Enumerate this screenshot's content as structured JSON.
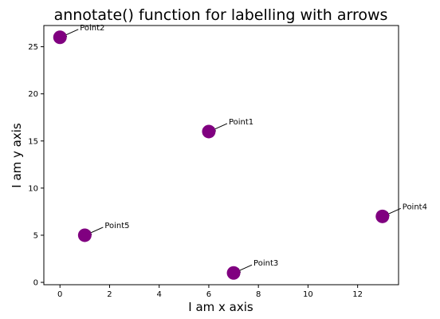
{
  "chart_data": {
    "type": "scatter",
    "title": "annotate() function for labelling with arrows",
    "xlabel": "I am x axis",
    "ylabel": "I am y axis",
    "xlim": [
      -0.65,
      13.65
    ],
    "ylim": [
      -0.25,
      27.25
    ],
    "xticks": [
      0,
      2,
      4,
      6,
      8,
      10,
      12
    ],
    "yticks": [
      0,
      5,
      10,
      15,
      20,
      25
    ],
    "grid": false,
    "marker_color": "#800080",
    "points": [
      {
        "x": 6,
        "y": 16,
        "label": "Point1"
      },
      {
        "x": 0,
        "y": 26,
        "label": "Point2"
      },
      {
        "x": 7,
        "y": 1,
        "label": "Point3"
      },
      {
        "x": 13,
        "y": 7,
        "label": "Point4"
      },
      {
        "x": 1,
        "y": 5,
        "label": "Point5"
      }
    ]
  }
}
